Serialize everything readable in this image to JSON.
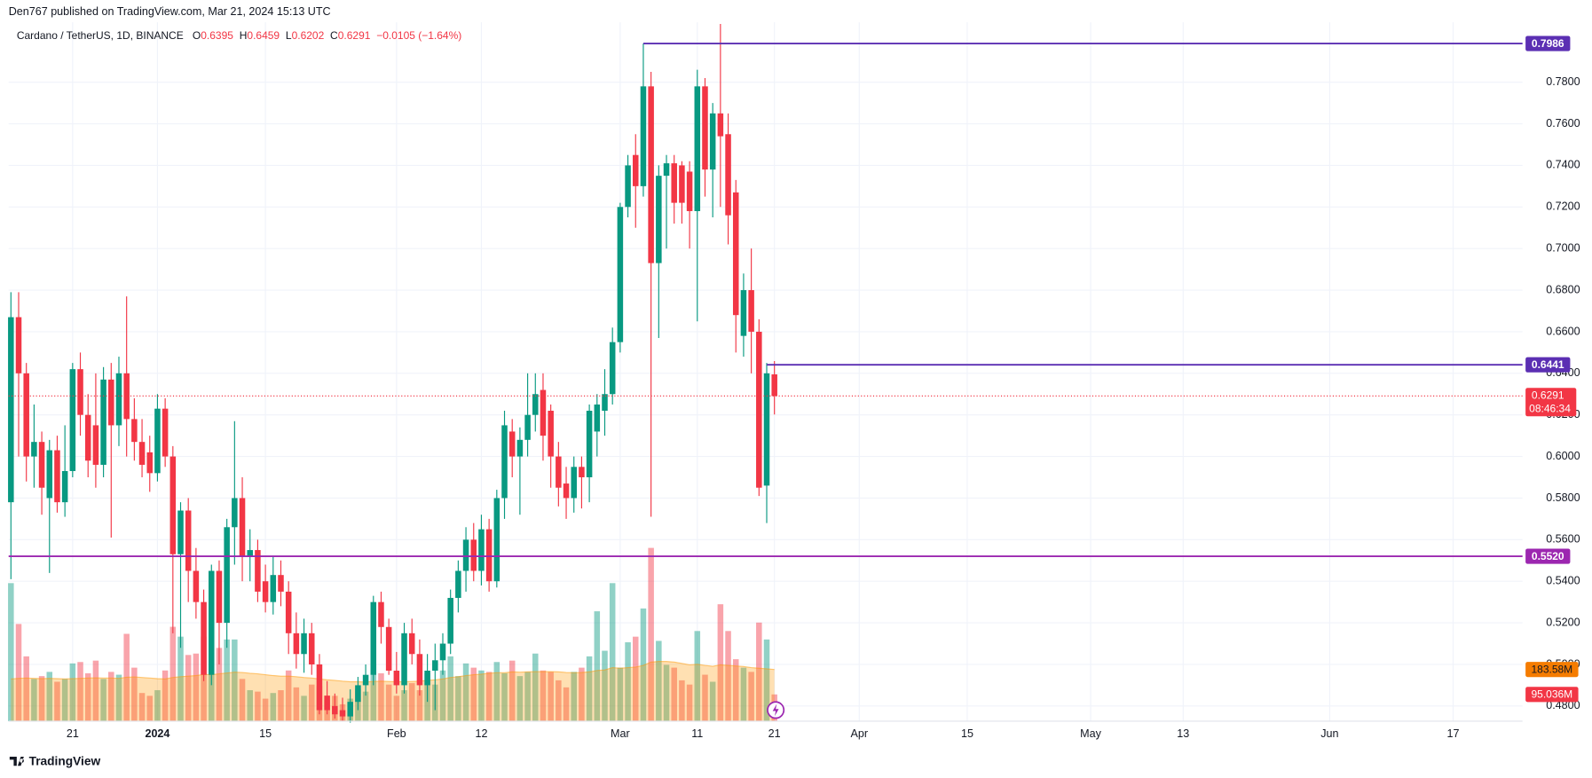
{
  "header": {
    "publisher": "Den767 published on TradingView.com, Mar 21, 2024 15:13 UTC",
    "brand": "TradingView"
  },
  "chart_data": {
    "type": "candlestick",
    "title": "Cardano / TetherUS, 1D, BINANCE",
    "legend": {
      "o_label": "O",
      "o": 0.6395,
      "h_label": "H",
      "h": 0.6459,
      "l_label": "L",
      "l": 0.6202,
      "c_label": "C",
      "c": 0.6291,
      "change_label": "−0.0105 (−1.64%)"
    },
    "up_color": "#089981",
    "down_color": "#f23645",
    "xlim": [
      -0.3,
      196
    ],
    "ylim": [
      0.4727,
      0.8088
    ],
    "xticks": [
      {
        "value": 8,
        "label": "21"
      },
      {
        "value": 19,
        "label": "2024",
        "bold": true
      },
      {
        "value": 33,
        "label": "15"
      },
      {
        "value": 50,
        "label": "Feb"
      },
      {
        "value": 61,
        "label": "12"
      },
      {
        "value": 79,
        "label": "Mar"
      },
      {
        "value": 89,
        "label": "11"
      },
      {
        "value": 99,
        "label": "21"
      },
      {
        "value": 110,
        "label": "Apr"
      },
      {
        "value": 124,
        "label": "15"
      },
      {
        "value": 140,
        "label": "May"
      },
      {
        "value": 152,
        "label": "13"
      },
      {
        "value": 171,
        "label": "Jun"
      },
      {
        "value": 187,
        "label": "17"
      }
    ],
    "yticks": [
      {
        "value": 0.48,
        "label": "0.4800"
      },
      {
        "value": 0.5,
        "label": "0.5000"
      },
      {
        "value": 0.52,
        "label": "0.5200"
      },
      {
        "value": 0.54,
        "label": "0.5400"
      },
      {
        "value": 0.56,
        "label": "0.5600"
      },
      {
        "value": 0.58,
        "label": "0.5800"
      },
      {
        "value": 0.6,
        "label": "0.6000"
      },
      {
        "value": 0.62,
        "label": "0.6200"
      },
      {
        "value": 0.64,
        "label": "0.6400"
      },
      {
        "value": 0.66,
        "label": "0.6600"
      },
      {
        "value": 0.68,
        "label": "0.6800"
      },
      {
        "value": 0.7,
        "label": "0.7000"
      },
      {
        "value": 0.72,
        "label": "0.7200"
      },
      {
        "value": 0.74,
        "label": "0.7400"
      },
      {
        "value": 0.76,
        "label": "0.7600"
      },
      {
        "value": 0.78,
        "label": "0.7800"
      }
    ],
    "grid": true,
    "candles": {
      "x": [
        0,
        1,
        2,
        3,
        4,
        5,
        6,
        7,
        8,
        9,
        10,
        11,
        12,
        13,
        14,
        15,
        16,
        17,
        18,
        19,
        20,
        21,
        22,
        23,
        24,
        25,
        26,
        27,
        28,
        29,
        30,
        31,
        32,
        33,
        34,
        35,
        36,
        37,
        38,
        39,
        40,
        41,
        42,
        43,
        44,
        45,
        46,
        47,
        48,
        49,
        50,
        51,
        52,
        53,
        54,
        55,
        56,
        57,
        58,
        59,
        60,
        61,
        62,
        63,
        64,
        65,
        66,
        67,
        68,
        69,
        70,
        71,
        72,
        73,
        74,
        75,
        76,
        77,
        78,
        79,
        80,
        81,
        82,
        83,
        84,
        85,
        86,
        87,
        88,
        89,
        90,
        91,
        92,
        93,
        94,
        95,
        96,
        97,
        98,
        99
      ],
      "open": [
        0.578,
        0.667,
        0.64,
        0.6,
        0.607,
        0.58,
        0.603,
        0.578,
        0.593,
        0.642,
        0.62,
        0.615,
        0.596,
        0.637,
        0.615,
        0.64,
        0.618,
        0.607,
        0.602,
        0.592,
        0.623,
        0.6,
        0.553,
        0.574,
        0.545,
        0.53,
        0.495,
        0.545,
        0.52,
        0.566,
        0.58,
        0.552,
        0.555,
        0.54,
        0.53,
        0.543,
        0.535,
        0.515,
        0.505,
        0.515,
        0.5,
        0.485,
        0.48,
        0.478,
        0.475,
        0.482,
        0.49,
        0.495,
        0.53,
        0.518,
        0.497,
        0.49,
        0.515,
        0.505,
        0.49,
        0.497,
        0.502,
        0.51,
        0.532,
        0.545,
        0.56,
        0.545,
        0.565,
        0.54,
        0.58,
        0.612,
        0.6,
        0.608,
        0.62,
        0.632,
        0.622,
        0.6,
        0.587,
        0.58,
        0.595,
        0.59,
        0.612,
        0.622,
        0.63,
        0.655,
        0.72,
        0.745,
        0.73,
        0.778,
        0.693,
        0.735,
        0.741,
        0.74,
        0.737,
        0.718,
        0.778,
        0.738,
        0.765,
        0.755,
        0.727,
        0.658,
        0.68,
        0.66,
        0.586,
        0.6395
      ],
      "high": [
        0.679,
        0.679,
        0.645,
        0.625,
        0.612,
        0.608,
        0.61,
        0.615,
        0.645,
        0.65,
        0.63,
        0.64,
        0.643,
        0.645,
        0.648,
        0.677,
        0.628,
        0.618,
        0.61,
        0.63,
        0.628,
        0.605,
        0.578,
        0.58,
        0.556,
        0.536,
        0.548,
        0.55,
        0.57,
        0.617,
        0.59,
        0.565,
        0.56,
        0.548,
        0.552,
        0.55,
        0.54,
        0.525,
        0.522,
        0.52,
        0.505,
        0.492,
        0.486,
        0.484,
        0.488,
        0.494,
        0.5,
        0.533,
        0.535,
        0.522,
        0.506,
        0.52,
        0.522,
        0.512,
        0.505,
        0.51,
        0.515,
        0.536,
        0.55,
        0.566,
        0.568,
        0.572,
        0.57,
        0.584,
        0.622,
        0.618,
        0.614,
        0.64,
        0.64,
        0.64,
        0.625,
        0.607,
        0.595,
        0.6,
        0.6,
        0.625,
        0.63,
        0.642,
        0.662,
        0.722,
        0.745,
        0.755,
        0.7986,
        0.785,
        0.74,
        0.745,
        0.745,
        0.742,
        0.742,
        0.786,
        0.782,
        0.77,
        0.808,
        0.765,
        0.733,
        0.688,
        0.7,
        0.666,
        0.645,
        0.6459
      ],
      "low": [
        0.541,
        0.6,
        0.588,
        0.585,
        0.572,
        0.544,
        0.573,
        0.571,
        0.59,
        0.61,
        0.59,
        0.585,
        0.59,
        0.561,
        0.605,
        0.6,
        0.598,
        0.59,
        0.583,
        0.588,
        0.595,
        0.515,
        0.508,
        0.53,
        0.522,
        0.492,
        0.49,
        0.5,
        0.508,
        0.548,
        0.54,
        0.54,
        0.53,
        0.525,
        0.524,
        0.528,
        0.505,
        0.498,
        0.496,
        0.495,
        0.476,
        0.476,
        0.474,
        0.473,
        0.472,
        0.478,
        0.485,
        0.49,
        0.51,
        0.495,
        0.486,
        0.486,
        0.5,
        0.485,
        0.482,
        0.478,
        0.495,
        0.505,
        0.525,
        0.535,
        0.54,
        0.538,
        0.535,
        0.537,
        0.57,
        0.59,
        0.572,
        0.6,
        0.612,
        0.598,
        0.585,
        0.576,
        0.57,
        0.573,
        0.575,
        0.578,
        0.6,
        0.61,
        0.625,
        0.65,
        0.715,
        0.71,
        0.725,
        0.571,
        0.657,
        0.7,
        0.712,
        0.712,
        0.7,
        0.665,
        0.725,
        0.715,
        0.72,
        0.702,
        0.65,
        0.648,
        0.64,
        0.581,
        0.568,
        0.6202
      ],
      "close": [
        0.667,
        0.64,
        0.6,
        0.607,
        0.585,
        0.603,
        0.578,
        0.593,
        0.642,
        0.62,
        0.598,
        0.596,
        0.637,
        0.615,
        0.64,
        0.618,
        0.607,
        0.596,
        0.592,
        0.623,
        0.6,
        0.553,
        0.574,
        0.545,
        0.53,
        0.495,
        0.545,
        0.52,
        0.566,
        0.58,
        0.552,
        0.555,
        0.535,
        0.53,
        0.543,
        0.535,
        0.515,
        0.505,
        0.515,
        0.5,
        0.478,
        0.478,
        0.476,
        0.475,
        0.482,
        0.49,
        0.495,
        0.53,
        0.518,
        0.497,
        0.49,
        0.515,
        0.505,
        0.49,
        0.497,
        0.502,
        0.51,
        0.532,
        0.545,
        0.56,
        0.545,
        0.565,
        0.54,
        0.58,
        0.615,
        0.6,
        0.608,
        0.62,
        0.63,
        0.61,
        0.6,
        0.585,
        0.58,
        0.595,
        0.59,
        0.622,
        0.625,
        0.63,
        0.655,
        0.72,
        0.74,
        0.73,
        0.778,
        0.693,
        0.735,
        0.741,
        0.722,
        0.722,
        0.718,
        0.778,
        0.738,
        0.765,
        0.754,
        0.716,
        0.668,
        0.68,
        0.66,
        0.585,
        0.64,
        0.6291
      ]
    },
    "volume": {
      "ylim": [
        0,
        2480
      ],
      "last_label": "95.036M",
      "values": [
        490,
        345,
        230,
        150,
        160,
        175,
        140,
        150,
        205,
        210,
        170,
        215,
        150,
        175,
        165,
        310,
        190,
        100,
        90,
        110,
        180,
        335,
        300,
        235,
        240,
        300,
        180,
        260,
        290,
        290,
        150,
        110,
        105,
        80,
        100,
        110,
        180,
        120,
        90,
        130,
        125,
        75,
        90,
        60,
        80,
        115,
        105,
        200,
        170,
        130,
        90,
        110,
        135,
        110,
        170,
        130,
        180,
        230,
        160,
        205,
        190,
        180,
        175,
        210,
        170,
        215,
        160,
        175,
        240,
        180,
        175,
        145,
        120,
        175,
        190,
        230,
        390,
        250,
        490,
        190,
        280,
        300,
        400,
        615,
        285,
        200,
        190,
        145,
        130,
        320,
        165,
        140,
        415,
        320,
        220,
        190,
        175,
        350,
        290,
        95.036
      ]
    },
    "volume_ma": {
      "color": "#ff9800",
      "last_label": "183.58M",
      "values": [
        150,
        152,
        153,
        152,
        151,
        152,
        151,
        150,
        151,
        152,
        153,
        154,
        153,
        153,
        152,
        156,
        157,
        155,
        153,
        151,
        150,
        155,
        158,
        160,
        162,
        166,
        165,
        168,
        171,
        174,
        173,
        170,
        168,
        165,
        162,
        160,
        160,
        158,
        155,
        153,
        150,
        147,
        145,
        142,
        140,
        140,
        139,
        141,
        142,
        141,
        140,
        140,
        141,
        142,
        145,
        147,
        150,
        155,
        158,
        162,
        165,
        167,
        170,
        172,
        172,
        175,
        174,
        175,
        176,
        176,
        176,
        175,
        173,
        172,
        173,
        175,
        180,
        182,
        190,
        188,
        190,
        192,
        198,
        210,
        212,
        212,
        210,
        205,
        200,
        202,
        198,
        195,
        200,
        198,
        196,
        194,
        190,
        188,
        186,
        183.58
      ]
    },
    "levels": [
      {
        "value": 0.7986,
        "from_x": 82,
        "color": "#5b2fb3"
      },
      {
        "value": 0.6441,
        "from_x": 98,
        "color": "#5b2fb3"
      },
      {
        "value": 0.552,
        "label": "0.5520",
        "color": "#9c27b0"
      }
    ],
    "last_price": {
      "value": 0.6291,
      "countdown": "08:46:34",
      "color": "#f23645"
    }
  }
}
